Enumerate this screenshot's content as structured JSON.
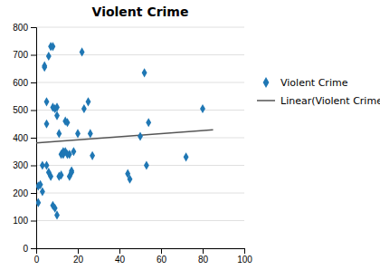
{
  "chart_data": {
    "type": "scatter",
    "title": "Violent Crime",
    "series": [
      {
        "name": "Violent Crime",
        "type": "scatter",
        "marker": "diamond",
        "x": [
          1,
          2,
          3,
          4,
          4,
          5,
          5,
          6,
          7,
          8,
          8,
          9,
          10,
          10,
          11,
          12,
          13,
          14,
          15,
          16,
          17,
          18,
          20,
          22,
          23,
          25,
          26,
          27,
          44,
          45,
          50,
          52,
          53,
          54,
          72,
          80,
          1,
          3,
          5,
          6,
          7,
          8,
          9,
          10,
          11,
          12,
          13,
          14,
          15,
          16,
          17
        ],
        "values": [
          225,
          230,
          300,
          660,
          655,
          530,
          450,
          695,
          730,
          730,
          510,
          505,
          510,
          480,
          415,
          340,
          350,
          460,
          455,
          260,
          280,
          350,
          415,
          710,
          505,
          530,
          415,
          335,
          270,
          250,
          405,
          635,
          300,
          455,
          330,
          505,
          165,
          205,
          300,
          275,
          260,
          155,
          145,
          120,
          260,
          265,
          340,
          350,
          340,
          340,
          275
        ]
      },
      {
        "name": "Linear(Violent Crime)",
        "type": "line",
        "line_style": "solid",
        "x": [
          0,
          85
        ],
        "values": [
          381.334,
          429.086
        ]
      }
    ],
    "xlim": [
      0,
      100
    ],
    "ylim": [
      0,
      800
    ],
    "xticks": [
      0,
      20,
      40,
      60,
      80,
      100
    ],
    "yticks": [
      0,
      100,
      200,
      300,
      400,
      500,
      600,
      700,
      800
    ],
    "grid": "y",
    "legend": "right"
  }
}
